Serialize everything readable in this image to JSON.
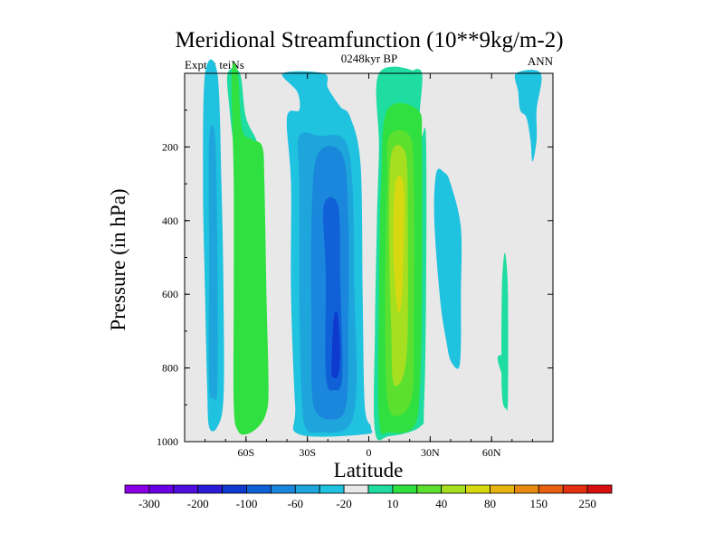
{
  "chart_data": {
    "type": "contour",
    "title": "Meridional Streamfunction (10**9kg/m-2)",
    "subtitle_left": "Expt = teiNs",
    "subtitle_center": "0248kyr BP",
    "subtitle_right": "ANN",
    "xlabel": "Latitude",
    "ylabel": "Pressure (in hPa)",
    "xlim": [
      -90,
      90
    ],
    "ylim": [
      0,
      1000
    ],
    "y_inverted": true,
    "x_ticks": [
      {
        "value": -60,
        "label": "60S"
      },
      {
        "value": -30,
        "label": "30S"
      },
      {
        "value": 0,
        "label": "0"
      },
      {
        "value": 30,
        "label": "30N"
      },
      {
        "value": 60,
        "label": "60N"
      }
    ],
    "y_ticks": [
      {
        "value": 200,
        "label": "200"
      },
      {
        "value": 400,
        "label": "400"
      },
      {
        "value": 600,
        "label": "600"
      },
      {
        "value": 800,
        "label": "800"
      },
      {
        "value": 1000,
        "label": "1000"
      }
    ],
    "colorbar": {
      "colors": [
        "#8a00e6",
        "#6a00e6",
        "#4f0fe0",
        "#2b1cd8",
        "#0f3ad0",
        "#1060d8",
        "#1a86dc",
        "#1ea6dc",
        "#1fc2df",
        "#e8e8e8",
        "#1fdca0",
        "#30e040",
        "#5ce030",
        "#a6de20",
        "#d8d810",
        "#e8b410",
        "#e88a10",
        "#e86010",
        "#e43010",
        "#d81010"
      ],
      "labels": [
        {
          "after_index": 0,
          "text": "-300"
        },
        {
          "after_index": 2,
          "text": "-200"
        },
        {
          "after_index": 4,
          "text": "-100"
        },
        {
          "after_index": 6,
          "text": "-60"
        },
        {
          "after_index": 8,
          "text": "-20"
        },
        {
          "after_index": 10,
          "text": "10"
        },
        {
          "after_index": 12,
          "text": "40"
        },
        {
          "after_index": 14,
          "text": "80"
        },
        {
          "after_index": 16,
          "text": "150"
        },
        {
          "after_index": 18,
          "text": "250"
        }
      ]
    },
    "regions": [
      {
        "name": "sh-polar-negative-cell",
        "level": "-20",
        "color": "#1fc2df",
        "poly": [
          [
            -80,
            0
          ],
          [
            -74,
            0
          ],
          [
            -72,
            300
          ],
          [
            -71,
            600
          ],
          [
            -71,
            880
          ],
          [
            -74,
            960
          ],
          [
            -78,
            960
          ],
          [
            -79,
            850
          ],
          [
            -80,
            600
          ],
          [
            -81,
            300
          ]
        ]
      },
      {
        "name": "sh-polar-negative-cell-core",
        "level": "-40",
        "color": "#1ea6dc",
        "poly": [
          [
            -78,
            180
          ],
          [
            -75,
            180
          ],
          [
            -74,
            500
          ],
          [
            -74,
            850
          ],
          [
            -76,
            880
          ],
          [
            -78,
            840
          ],
          [
            -78,
            500
          ]
        ]
      },
      {
        "name": "sh-midlat-positive-top",
        "level": "10",
        "color": "#1fdca0",
        "poly": [
          [
            -69,
            0
          ],
          [
            -63,
            0
          ],
          [
            -60,
            120
          ],
          [
            -54,
            200
          ],
          [
            -56,
            300
          ],
          [
            -60,
            420
          ],
          [
            -64,
            300
          ],
          [
            -66,
            200
          ],
          [
            -68,
            100
          ]
        ]
      },
      {
        "name": "sh-ferrel-positive-cell",
        "level": "20",
        "color": "#30e040",
        "poly": [
          [
            -67,
            0
          ],
          [
            -64,
            0
          ],
          [
            -62,
            150
          ],
          [
            -57,
            180
          ],
          [
            -52,
            200
          ],
          [
            -51,
            300
          ],
          [
            -50,
            600
          ],
          [
            -49,
            850
          ],
          [
            -50,
            920
          ],
          [
            -54,
            960
          ],
          [
            -60,
            980
          ],
          [
            -64,
            970
          ],
          [
            -66,
            900
          ],
          [
            -66,
            600
          ],
          [
            -66,
            300
          ]
        ]
      },
      {
        "name": "sh-hadley-negative-cell",
        "level": "-20",
        "color": "#1fc2df",
        "poly": [
          [
            -42,
            0
          ],
          [
            -22,
            0
          ],
          [
            -20,
            40
          ],
          [
            -14,
            90
          ],
          [
            -9,
            120
          ],
          [
            -4,
            250
          ],
          [
            -3,
            600
          ],
          [
            -2,
            900
          ],
          [
            1,
            960
          ],
          [
            -2,
            980
          ],
          [
            -34,
            980
          ],
          [
            -36,
            900
          ],
          [
            -38,
            600
          ],
          [
            -38,
            300
          ],
          [
            -40,
            120
          ],
          [
            -34,
            100
          ],
          [
            -35,
            50
          ]
        ]
      },
      {
        "name": "sh-hadley-negative-mid",
        "level": "-40",
        "color": "#1ea6dc",
        "poly": [
          [
            -34,
            170
          ],
          [
            -24,
            170
          ],
          [
            -12,
            180
          ],
          [
            -8,
            300
          ],
          [
            -7,
            600
          ],
          [
            -6,
            850
          ],
          [
            -10,
            960
          ],
          [
            -24,
            975
          ],
          [
            -31,
            960
          ],
          [
            -33,
            850
          ],
          [
            -34,
            600
          ],
          [
            -34,
            300
          ]
        ]
      },
      {
        "name": "sh-hadley-negative-inner",
        "level": "-60",
        "color": "#1a86dc",
        "poly": [
          [
            -25,
            220
          ],
          [
            -13,
            220
          ],
          [
            -10,
            400
          ],
          [
            -10,
            700
          ],
          [
            -11,
            900
          ],
          [
            -18,
            940
          ],
          [
            -27,
            900
          ],
          [
            -28,
            700
          ],
          [
            -28,
            400
          ]
        ]
      },
      {
        "name": "sh-hadley-negative-strong",
        "level": "-80",
        "color": "#1060d8",
        "poly": [
          [
            -22,
            360
          ],
          [
            -15,
            360
          ],
          [
            -14,
            550
          ],
          [
            -13,
            820
          ],
          [
            -17,
            860
          ],
          [
            -21,
            820
          ],
          [
            -21,
            550
          ]
        ]
      },
      {
        "name": "sh-hadley-negative-core",
        "level": "-100",
        "color": "#0f3ad0",
        "poly": [
          [
            -17,
            660
          ],
          [
            -15,
            660
          ],
          [
            -14,
            760
          ],
          [
            -15,
            820
          ],
          [
            -18,
            820
          ],
          [
            -18,
            760
          ]
        ]
      },
      {
        "name": "nh-hadley-positive-cell",
        "level": "10",
        "color": "#1fdca0",
        "poly": [
          [
            5,
            0
          ],
          [
            24,
            0
          ],
          [
            24,
            80
          ],
          [
            25,
            140
          ],
          [
            26,
            170
          ],
          [
            28,
            180
          ],
          [
            28,
            600
          ],
          [
            27,
            900
          ],
          [
            25,
            960
          ],
          [
            10,
            985
          ],
          [
            3,
            970
          ],
          [
            3,
            700
          ],
          [
            4,
            400
          ],
          [
            5,
            200
          ]
        ]
      },
      {
        "name": "nh-tropopause-plume",
        "level": "10",
        "color": "#1fdca0",
        "poly": [
          [
            21,
            0
          ],
          [
            26,
            0
          ],
          [
            25,
            100
          ],
          [
            24,
            180
          ],
          [
            22,
            180
          ],
          [
            21,
            90
          ]
        ]
      },
      {
        "name": "nh-hadley-positive-mid",
        "level": "20",
        "color": "#30e040",
        "poly": [
          [
            9,
            100
          ],
          [
            24,
            100
          ],
          [
            26,
            200
          ],
          [
            26,
            600
          ],
          [
            25,
            850
          ],
          [
            22,
            960
          ],
          [
            10,
            975
          ],
          [
            5,
            940
          ],
          [
            5,
            600
          ],
          [
            6,
            300
          ]
        ]
      },
      {
        "name": "nh-hadley-positive-inner",
        "level": "40",
        "color": "#5ce030",
        "poly": [
          [
            10,
            170
          ],
          [
            20,
            170
          ],
          [
            22,
            300
          ],
          [
            22,
            700
          ],
          [
            21,
            880
          ],
          [
            14,
            930
          ],
          [
            9,
            880
          ],
          [
            8,
            600
          ],
          [
            9,
            300
          ]
        ]
      },
      {
        "name": "nh-hadley-positive-strong",
        "level": "60",
        "color": "#a6de20",
        "poly": [
          [
            11,
            220
          ],
          [
            18,
            220
          ],
          [
            19,
            400
          ],
          [
            19,
            700
          ],
          [
            17,
            820
          ],
          [
            12,
            840
          ],
          [
            11,
            700
          ],
          [
            10,
            450
          ]
        ]
      },
      {
        "name": "nh-hadley-positive-core",
        "level": "80",
        "color": "#d8d810",
        "poly": [
          [
            13,
            300
          ],
          [
            17,
            300
          ],
          [
            17,
            480
          ],
          [
            16,
            620
          ],
          [
            14,
            640
          ],
          [
            12,
            480
          ]
        ]
      },
      {
        "name": "nh-ferrel-negative-cell",
        "level": "-20",
        "color": "#1fc2df",
        "poly": [
          [
            33,
            270
          ],
          [
            37,
            270
          ],
          [
            40,
            300
          ],
          [
            45,
            420
          ],
          [
            45,
            600
          ],
          [
            45,
            730
          ],
          [
            44,
            800
          ],
          [
            40,
            780
          ],
          [
            38,
            730
          ],
          [
            35,
            620
          ],
          [
            32,
            400
          ]
        ]
      },
      {
        "name": "nh-polar-positive-cell",
        "level": "10",
        "color": "#1fdca0",
        "poly": [
          [
            66,
            500
          ],
          [
            67,
            500
          ],
          [
            68,
            600
          ],
          [
            68,
            880
          ],
          [
            67,
            910
          ],
          [
            65,
            860
          ],
          [
            65,
            600
          ]
        ]
      },
      {
        "name": "nh-polar-positive-notch",
        "level": "10",
        "color": "#1fdca0",
        "poly": [
          [
            63,
            770
          ],
          [
            66,
            770
          ],
          [
            66,
            820
          ],
          [
            64,
            800
          ]
        ]
      },
      {
        "name": "nh-stratospheric-negative",
        "level": "-20",
        "color": "#1fc2df",
        "poly": [
          [
            72,
            0
          ],
          [
            84,
            0
          ],
          [
            82,
            100
          ],
          [
            82,
            180
          ],
          [
            80,
            240
          ],
          [
            79,
            180
          ],
          [
            77,
            120
          ],
          [
            74,
            100
          ],
          [
            73,
            50
          ]
        ]
      }
    ]
  }
}
